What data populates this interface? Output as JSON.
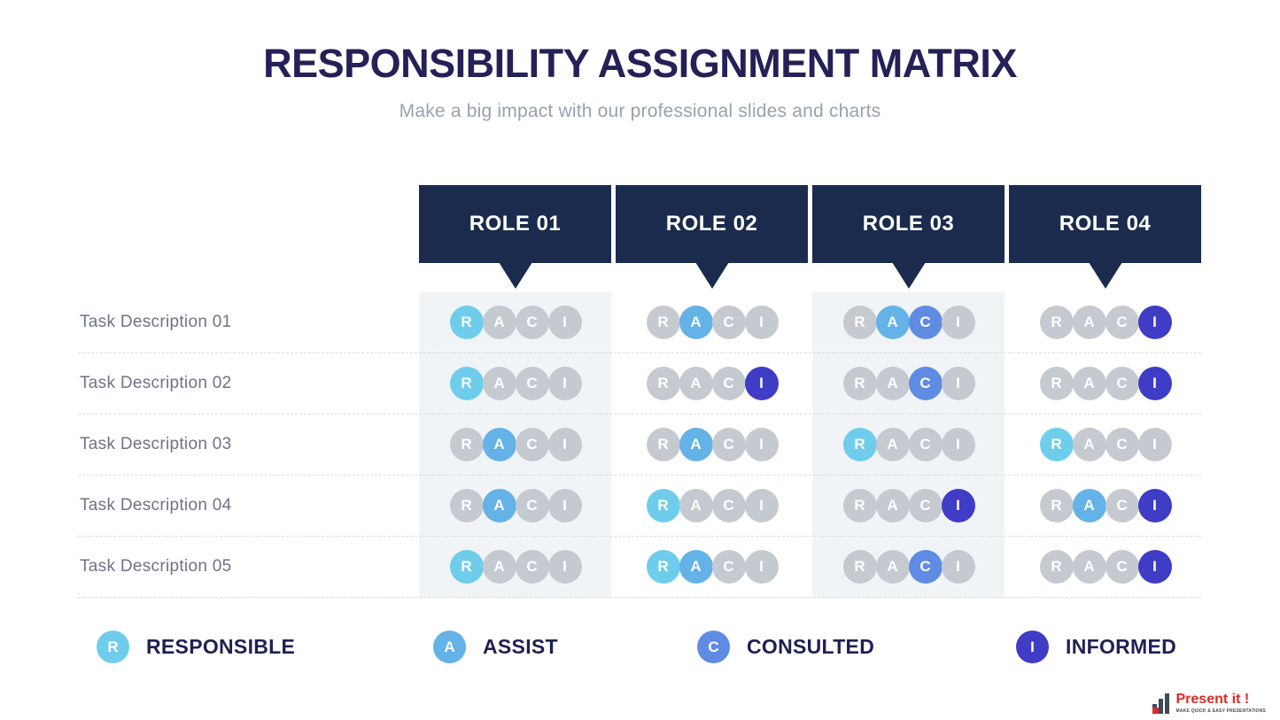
{
  "title": "RESPONSIBILITY ASSIGNMENT MATRIX",
  "subtitle": "Make a big impact with our professional slides and charts",
  "roles": [
    "ROLE 01",
    "ROLE 02",
    "ROLE 03",
    "ROLE 04"
  ],
  "raci_letters": [
    "R",
    "A",
    "C",
    "I"
  ],
  "tasks": [
    {
      "label": "Task Description 01",
      "assignments": [
        [
          "R"
        ],
        [
          "A"
        ],
        [
          "A",
          "C"
        ],
        [
          "I"
        ]
      ]
    },
    {
      "label": "Task Description 02",
      "assignments": [
        [
          "R"
        ],
        [
          "I"
        ],
        [
          "C"
        ],
        [
          "I"
        ]
      ]
    },
    {
      "label": "Task Description 03",
      "assignments": [
        [
          "A"
        ],
        [
          "A"
        ],
        [
          "R"
        ],
        [
          "R"
        ]
      ]
    },
    {
      "label": "Task Description 04",
      "assignments": [
        [
          "A"
        ],
        [
          "R"
        ],
        [
          "I"
        ],
        [
          "A",
          "I"
        ]
      ]
    },
    {
      "label": "Task Description 05",
      "assignments": [
        [
          "R"
        ],
        [
          "R",
          "A"
        ],
        [
          "C"
        ],
        [
          "I"
        ]
      ]
    }
  ],
  "legend": [
    {
      "letter": "R",
      "label": "RESPONSIBLE"
    },
    {
      "letter": "A",
      "label": "ASSIST"
    },
    {
      "letter": "C",
      "label": "CONSULTED"
    },
    {
      "letter": "I",
      "label": "INFORMED"
    }
  ],
  "colors": {
    "responsible": "#6FCDEC",
    "assist": "#64B2E8",
    "consulted": "#5F8CE2",
    "informed": "#3F3CC6",
    "inactive": "#C5CAD1",
    "header_bg": "#1A2B4D",
    "title_navy": "#232156"
  },
  "logo": {
    "name": "Present it !",
    "tagline": "MAKE QUICK & EASY PRESENTATIONS"
  }
}
